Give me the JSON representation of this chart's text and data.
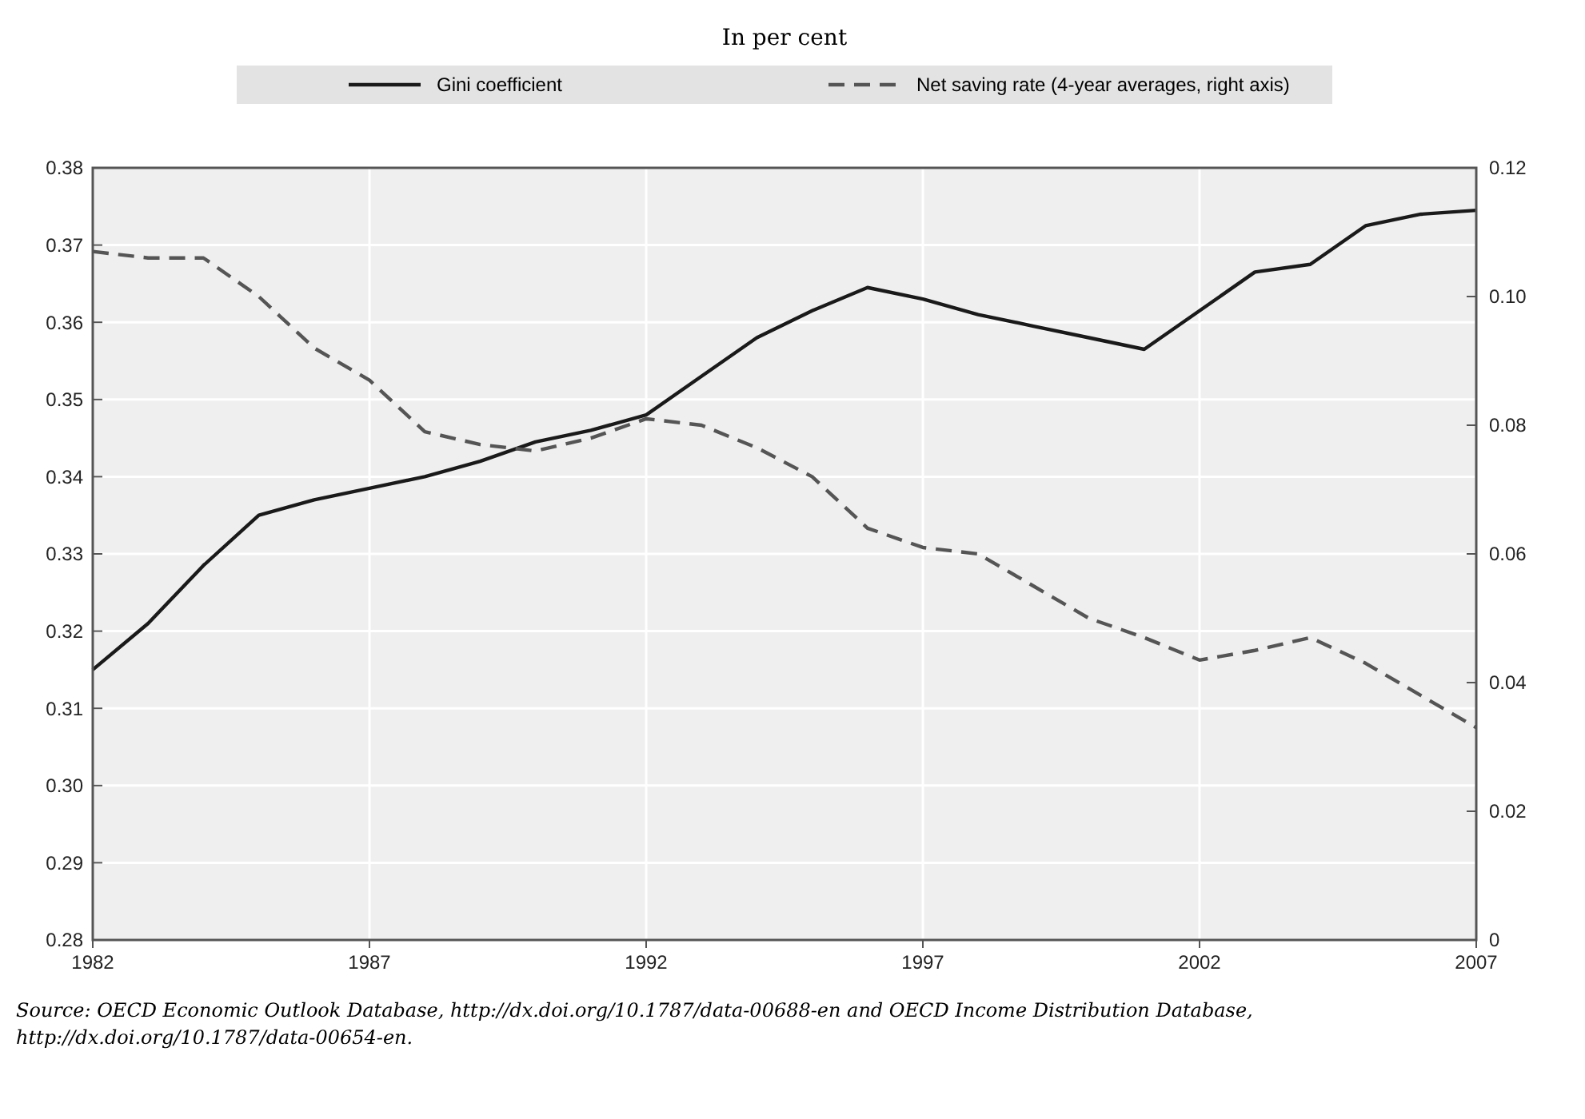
{
  "chart_data": {
    "type": "line",
    "title": "In per cent",
    "x": [
      1982,
      1983,
      1984,
      1985,
      1986,
      1987,
      1988,
      1989,
      1990,
      1991,
      1992,
      1993,
      1994,
      1995,
      1996,
      1997,
      1998,
      1999,
      2000,
      2001,
      2002,
      2003,
      2004,
      2005,
      2006,
      2007
    ],
    "series": [
      {
        "name": "Gini coefficient",
        "color": "#1a1a1a",
        "line_style": "solid",
        "values": [
          0.315,
          0.321,
          0.3285,
          0.335,
          0.337,
          0.3385,
          0.34,
          0.342,
          0.3445,
          0.346,
          0.348,
          0.353,
          0.358,
          0.3615,
          0.3645,
          0.363,
          0.361,
          0.3595,
          0.358,
          0.3565,
          0.3615,
          0.3665,
          0.3675,
          0.3725,
          0.374,
          0.3745
        ]
      },
      {
        "name": "Net saving rate (4-year averages, right axis)",
        "color": "#555555",
        "line_style": "dashed",
        "axis": "y2",
        "values": [
          0.107,
          0.106,
          0.106,
          0.1,
          0.092,
          0.087,
          0.079,
          0.077,
          0.076,
          0.078,
          0.081,
          0.08,
          0.0765,
          0.072,
          0.064,
          0.061,
          0.06,
          0.055,
          0.05,
          0.047,
          0.0435,
          0.045,
          0.047,
          0.043,
          0.038,
          0.033
        ]
      }
    ],
    "xlim": [
      1982,
      2007
    ],
    "xticks": [
      1982,
      1987,
      1992,
      1997,
      2002,
      2007
    ],
    "ylim": [
      0.28,
      0.38
    ],
    "yticks": [
      {
        "value": 0.28,
        "label": "0.28"
      },
      {
        "value": 0.29,
        "label": "0.29"
      },
      {
        "value": 0.3,
        "label": "0.30"
      },
      {
        "value": 0.31,
        "label": "0.31"
      },
      {
        "value": 0.32,
        "label": "0.32"
      },
      {
        "value": 0.33,
        "label": "0.33"
      },
      {
        "value": 0.34,
        "label": "0.34"
      },
      {
        "value": 0.35,
        "label": "0.35"
      },
      {
        "value": 0.36,
        "label": "0.36"
      },
      {
        "value": 0.37,
        "label": "0.37"
      },
      {
        "value": 0.38,
        "label": "0.38"
      }
    ],
    "y2lim": [
      0,
      0.12
    ],
    "y2ticks": [
      0,
      {
        "value": 0.02,
        "label": "0.02"
      },
      {
        "value": 0.04,
        "label": "0.04"
      },
      {
        "value": 0.06,
        "label": "0.06"
      },
      {
        "value": 0.08,
        "label": "0.08"
      },
      {
        "value": 0.1,
        "label": "0.10"
      },
      {
        "value": 0.12,
        "label": "0.12"
      }
    ],
    "grid": true,
    "legend": "top",
    "annotations": [
      "Source: OECD Economic Outlook Database, http://dx.doi.org/10.1787/data-00688-en and OECD Income Distribution Database, http://dx.doi.org/10.1787/data-00654-en."
    ]
  }
}
